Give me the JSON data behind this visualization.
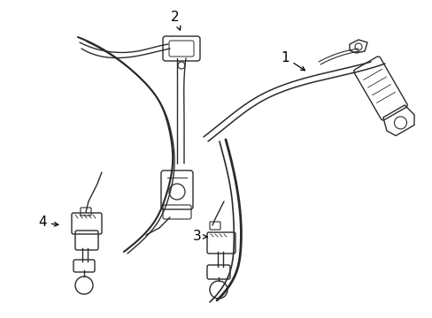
{
  "background_color": "#ffffff",
  "line_color": "#2a2a2a",
  "label_color": "#000000",
  "figsize": [
    4.89,
    3.6
  ],
  "dpi": 100,
  "lw": 1.0
}
